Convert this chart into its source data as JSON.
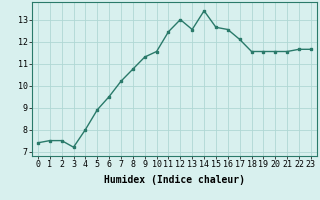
{
  "x": [
    0,
    1,
    2,
    3,
    4,
    5,
    6,
    7,
    8,
    9,
    10,
    11,
    12,
    13,
    14,
    15,
    16,
    17,
    18,
    19,
    20,
    21,
    22,
    23
  ],
  "y": [
    7.4,
    7.5,
    7.5,
    7.2,
    8.0,
    8.9,
    9.5,
    10.2,
    10.75,
    11.3,
    11.55,
    12.45,
    13.0,
    12.55,
    13.4,
    12.65,
    12.55,
    12.1,
    11.55,
    11.55,
    11.55,
    11.55,
    11.65,
    11.65
  ],
  "line_color": "#2a7a6a",
  "marker": "s",
  "marker_size": 2,
  "bg_color": "#d8f0ee",
  "grid_color": "#b0d8d4",
  "xlabel": "Humidex (Indice chaleur)",
  "xlim": [
    -0.5,
    23.5
  ],
  "ylim": [
    6.8,
    13.8
  ],
  "yticks": [
    7,
    8,
    9,
    10,
    11,
    12,
    13
  ],
  "xticks": [
    0,
    1,
    2,
    3,
    4,
    5,
    6,
    7,
    8,
    9,
    10,
    11,
    12,
    13,
    14,
    15,
    16,
    17,
    18,
    19,
    20,
    21,
    22,
    23
  ],
  "xlabel_fontsize": 7,
  "tick_fontsize": 6,
  "line_width": 1.0
}
